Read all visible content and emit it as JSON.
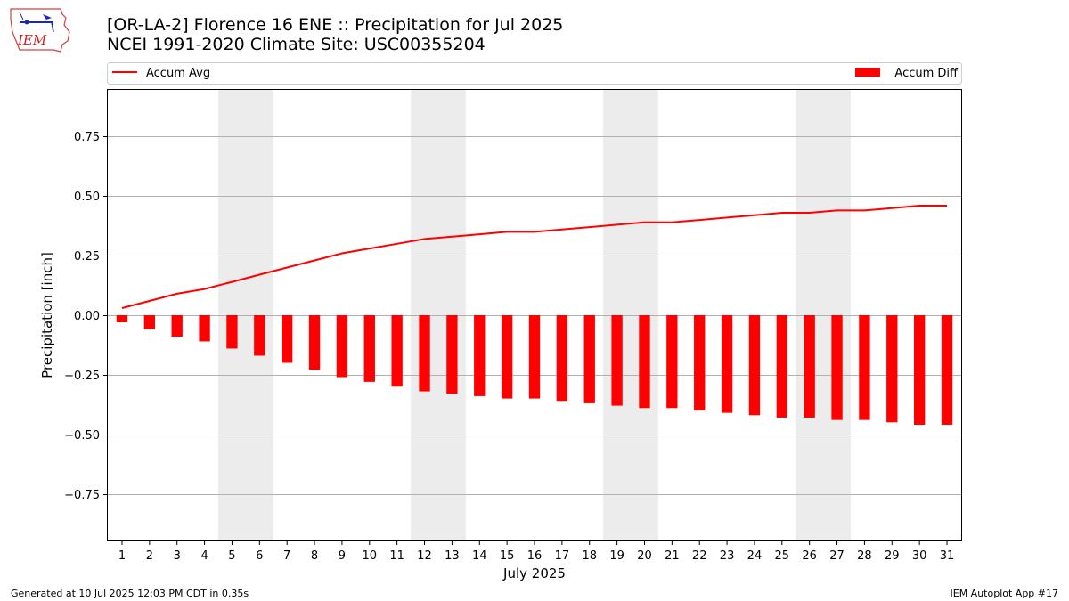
{
  "header": {
    "title_line1": "[OR-LA-2] Florence 16 ENE :: Precipitation for Jul 2025",
    "title_line2": "NCEI 1991-2020 Climate Site: USC00355204",
    "logo_text": "IEM"
  },
  "footer": {
    "generated": "Generated at 10 Jul 2025 12:03 PM CDT in 0.35s",
    "app": "IEM Autoplot App #17"
  },
  "colors": {
    "line": "#ff0000",
    "bars": "#ff0000",
    "weekend_shade": "#ececec",
    "grid": "#b0b0b0"
  },
  "chart_data": {
    "type": "bar",
    "title": "[OR-LA-2] Florence 16 ENE :: Precipitation for Jul 2025",
    "subtitle": "NCEI 1991-2020 Climate Site: USC00355204",
    "xlabel": "July 2025",
    "ylabel": "Precipitation [inch]",
    "ylim": [
      -0.95,
      0.95
    ],
    "yticks": [
      0.75,
      0.5,
      0.25,
      0.0,
      -0.25,
      -0.5,
      -0.75
    ],
    "ytick_labels": [
      "0.75",
      "0.50",
      "0.25",
      "0.00",
      "−0.25",
      "−0.50",
      "−0.75"
    ],
    "categories": [
      "1",
      "2",
      "3",
      "4",
      "5",
      "6",
      "7",
      "8",
      "9",
      "10",
      "11",
      "12",
      "13",
      "14",
      "15",
      "16",
      "17",
      "18",
      "19",
      "20",
      "21",
      "22",
      "23",
      "24",
      "25",
      "26",
      "27",
      "28",
      "29",
      "30",
      "31"
    ],
    "grid": "horizontal",
    "legend": {
      "left": "Accum Avg",
      "right": "Accum Diff",
      "placement": "top, above plot"
    },
    "shaded_days": [
      [
        5,
        6
      ],
      [
        12,
        13
      ],
      [
        19,
        20
      ],
      [
        26,
        27
      ]
    ],
    "series": [
      {
        "name": "Accum Avg",
        "kind": "line",
        "values": [
          0.03,
          0.06,
          0.09,
          0.11,
          0.14,
          0.17,
          0.2,
          0.23,
          0.26,
          0.28,
          0.3,
          0.32,
          0.33,
          0.34,
          0.35,
          0.35,
          0.36,
          0.37,
          0.38,
          0.39,
          0.39,
          0.4,
          0.41,
          0.42,
          0.43,
          0.43,
          0.44,
          0.44,
          0.45,
          0.46,
          0.46
        ]
      },
      {
        "name": "Accum Diff",
        "kind": "bar",
        "values": [
          -0.03,
          -0.06,
          -0.09,
          -0.11,
          -0.14,
          -0.17,
          -0.2,
          -0.23,
          -0.26,
          -0.28,
          -0.3,
          -0.32,
          -0.33,
          -0.34,
          -0.35,
          -0.35,
          -0.36,
          -0.37,
          -0.38,
          -0.39,
          -0.39,
          -0.4,
          -0.41,
          -0.42,
          -0.43,
          -0.43,
          -0.44,
          -0.44,
          -0.45,
          -0.46,
          -0.46
        ]
      }
    ]
  }
}
